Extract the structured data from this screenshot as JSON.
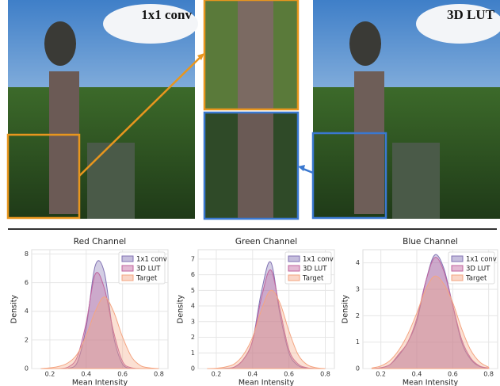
{
  "images": {
    "left_label": "1x1 conv",
    "right_label": "3D LUT"
  },
  "chart_data": [
    {
      "type": "area",
      "title": "Red Channel",
      "x_label": "Mean Intensity",
      "y_label": "Density",
      "x": [
        0.15,
        0.2,
        0.25,
        0.3,
        0.35,
        0.4,
        0.45,
        0.5,
        0.55,
        0.6,
        0.65,
        0.7,
        0.75,
        0.8
      ],
      "xlim": [
        0.1,
        0.85
      ],
      "xticks": [
        0.2,
        0.4,
        0.6,
        0.8
      ],
      "ylim": [
        0,
        8.3
      ],
      "yticks": [
        0,
        2,
        4,
        6,
        8
      ],
      "grid": true,
      "legend": "upper right",
      "series": [
        {
          "name": "1x1 conv",
          "color": "#8172b3",
          "values": [
            0,
            0,
            0,
            0.01,
            0.4,
            2.9,
            7.2,
            6.7,
            2.3,
            0.3,
            0,
            0,
            0,
            0
          ]
        },
        {
          "name": "3D LUT",
          "color": "#c0649e",
          "values": [
            0,
            0,
            0,
            0.1,
            0.8,
            3.2,
            6.6,
            5.6,
            2.6,
            0.5,
            0.05,
            0,
            0,
            0
          ]
        },
        {
          "name": "Target",
          "color": "#f4a582",
          "values": [
            0,
            0.05,
            0.15,
            0.4,
            1.0,
            2.3,
            4.0,
            5.0,
            4.0,
            2.2,
            0.8,
            0.2,
            0.05,
            0
          ]
        }
      ]
    },
    {
      "type": "area",
      "title": "Green Channel",
      "x_label": "Mean Intensity",
      "y_label": "Density",
      "x": [
        0.15,
        0.2,
        0.25,
        0.3,
        0.35,
        0.4,
        0.45,
        0.5,
        0.55,
        0.6,
        0.65,
        0.7,
        0.75,
        0.8
      ],
      "xlim": [
        0.1,
        0.85
      ],
      "xticks": [
        0.2,
        0.4,
        0.6,
        0.8
      ],
      "ylim": [
        0,
        7.6
      ],
      "yticks": [
        0,
        1,
        2,
        3,
        4,
        5,
        6,
        7
      ],
      "grid": true,
      "legend": "upper right",
      "series": [
        {
          "name": "1x1 conv",
          "color": "#8172b3",
          "values": [
            0,
            0,
            0.02,
            0.1,
            0.6,
            1.8,
            5.0,
            6.8,
            3.5,
            1.0,
            0.2,
            0.03,
            0,
            0
          ]
        },
        {
          "name": "3D LUT",
          "color": "#c0649e",
          "values": [
            0,
            0,
            0,
            0.1,
            0.6,
            1.8,
            4.6,
            6.3,
            3.8,
            1.2,
            0.3,
            0.05,
            0,
            0
          ]
        },
        {
          "name": "Target",
          "color": "#f4a582",
          "values": [
            0,
            0.02,
            0.1,
            0.3,
            0.9,
            2.0,
            3.8,
            5.0,
            4.2,
            2.4,
            0.9,
            0.25,
            0.05,
            0
          ]
        }
      ]
    },
    {
      "type": "area",
      "title": "Blue Channel",
      "x_label": "Mean Intensity",
      "y_label": "Density",
      "x": [
        0.15,
        0.2,
        0.25,
        0.3,
        0.35,
        0.4,
        0.45,
        0.5,
        0.55,
        0.6,
        0.65,
        0.7,
        0.75,
        0.8
      ],
      "xlim": [
        0.1,
        0.85
      ],
      "xticks": [
        0.2,
        0.4,
        0.6,
        0.8
      ],
      "ylim": [
        0,
        4.5
      ],
      "yticks": [
        0,
        1,
        2,
        3,
        4
      ],
      "grid": true,
      "legend": "upper right",
      "series": [
        {
          "name": "1x1 conv",
          "color": "#8172b3",
          "values": [
            0,
            0.03,
            0.15,
            0.5,
            1.0,
            1.8,
            3.3,
            4.3,
            3.8,
            2.4,
            1.0,
            0.35,
            0.08,
            0.01
          ]
        },
        {
          "name": "3D LUT",
          "color": "#c0649e",
          "values": [
            0,
            0.03,
            0.15,
            0.55,
            1.0,
            1.9,
            3.3,
            4.2,
            3.7,
            2.4,
            1.1,
            0.4,
            0.1,
            0.02
          ]
        },
        {
          "name": "Target",
          "color": "#f4a582",
          "values": [
            0.02,
            0.1,
            0.3,
            0.7,
            1.3,
            2.1,
            3.0,
            3.5,
            3.2,
            2.5,
            1.5,
            0.7,
            0.25,
            0.05
          ]
        }
      ]
    }
  ]
}
